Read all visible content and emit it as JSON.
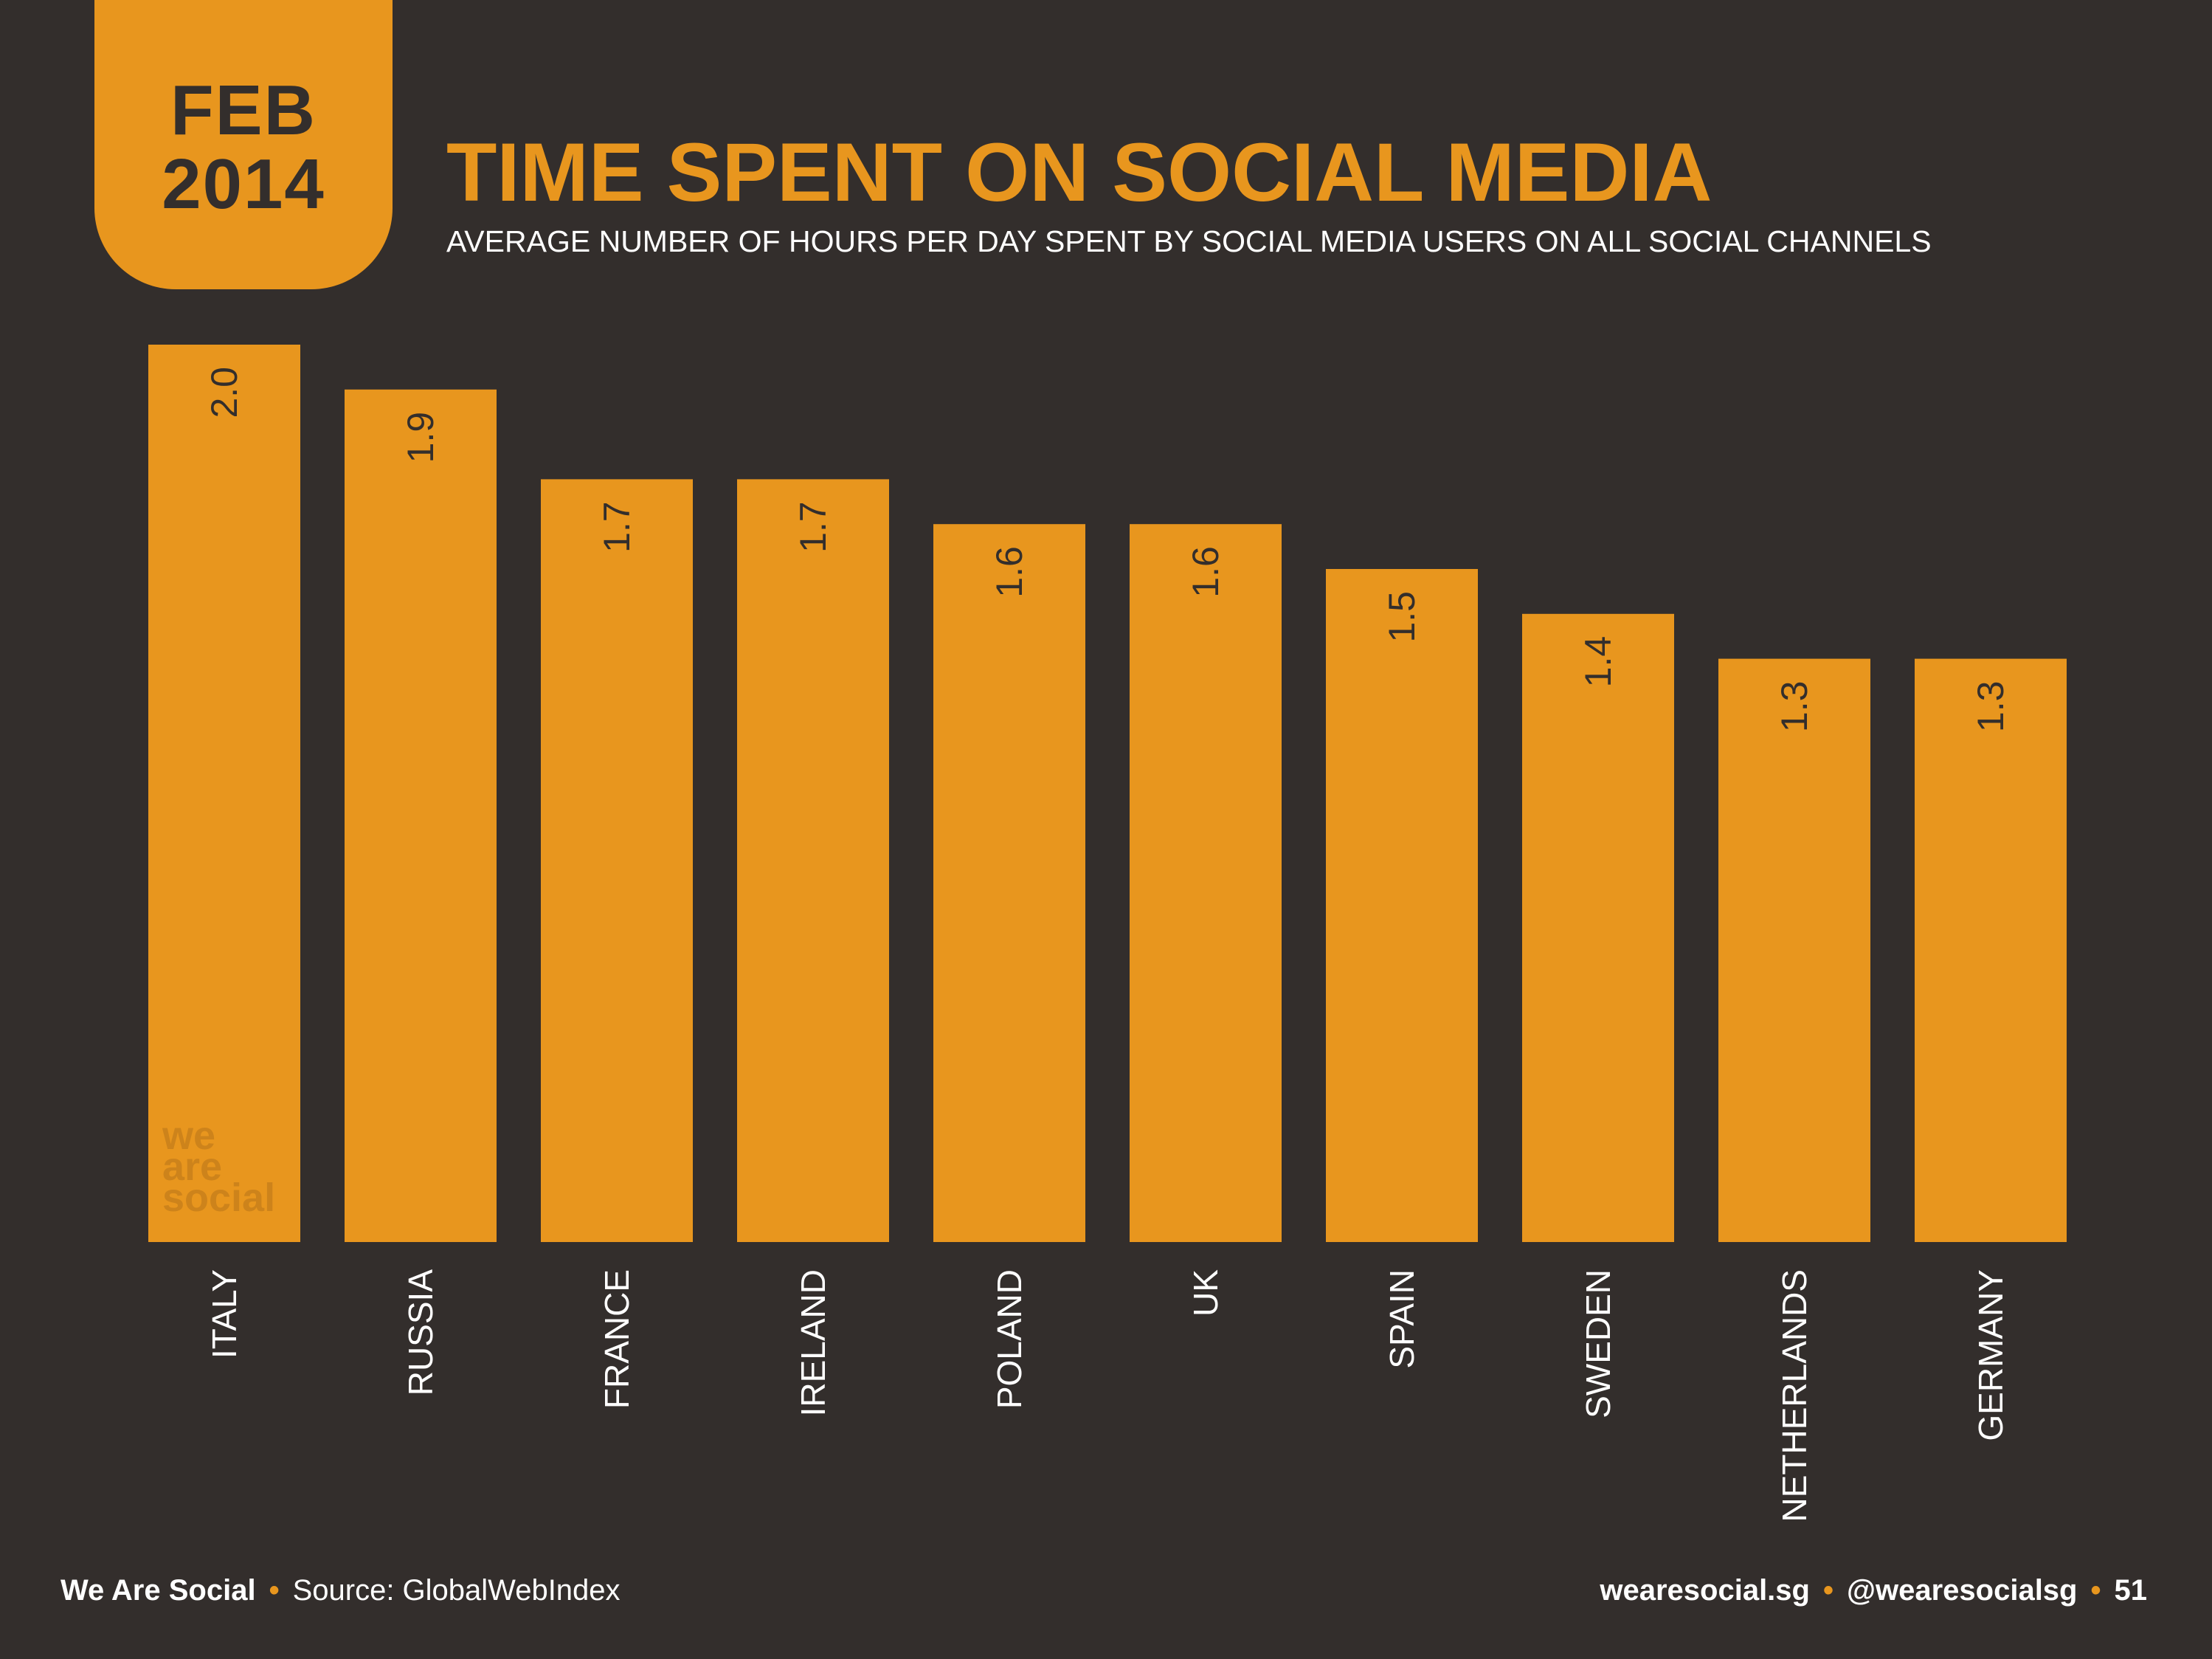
{
  "header": {
    "date_line1": "FEB",
    "date_line2": "2014",
    "title": "TIME SPENT ON SOCIAL MEDIA",
    "subtitle": "AVERAGE NUMBER OF HOURS PER DAY SPENT BY SOCIAL MEDIA USERS ON ALL SOCIAL CHANNELS"
  },
  "watermark": [
    "we",
    "are",
    "social"
  ],
  "footer": {
    "brand": "We Are Social",
    "source": "Source: GlobalWebIndex",
    "website": "wearesocial.sg",
    "handle": "@wearesocialsg",
    "page_number": "51"
  },
  "colors": {
    "background": "#332e2c",
    "accent": "#e8961e",
    "text": "#ffffff"
  },
  "chart_data": {
    "type": "bar",
    "title": "TIME SPENT ON SOCIAL MEDIA",
    "subtitle": "AVERAGE NUMBER OF HOURS PER DAY SPENT BY SOCIAL MEDIA USERS ON ALL SOCIAL CHANNELS",
    "categories": [
      "ITALY",
      "RUSSIA",
      "FRANCE",
      "IRELAND",
      "POLAND",
      "UK",
      "SPAIN",
      "SWEDEN",
      "NETHERLANDS",
      "GERMANY"
    ],
    "values": [
      2.0,
      1.9,
      1.7,
      1.7,
      1.6,
      1.6,
      1.5,
      1.4,
      1.3,
      1.3
    ],
    "value_labels": [
      "2.0",
      "1.9",
      "1.7",
      "1.7",
      "1.6",
      "1.6",
      "1.5",
      "1.4",
      "1.3",
      "1.3"
    ],
    "xlabel": "",
    "ylabel": "",
    "ylim": [
      0,
      2.0
    ],
    "grid": false,
    "legend": "none",
    "label_orientation": "vertical"
  }
}
